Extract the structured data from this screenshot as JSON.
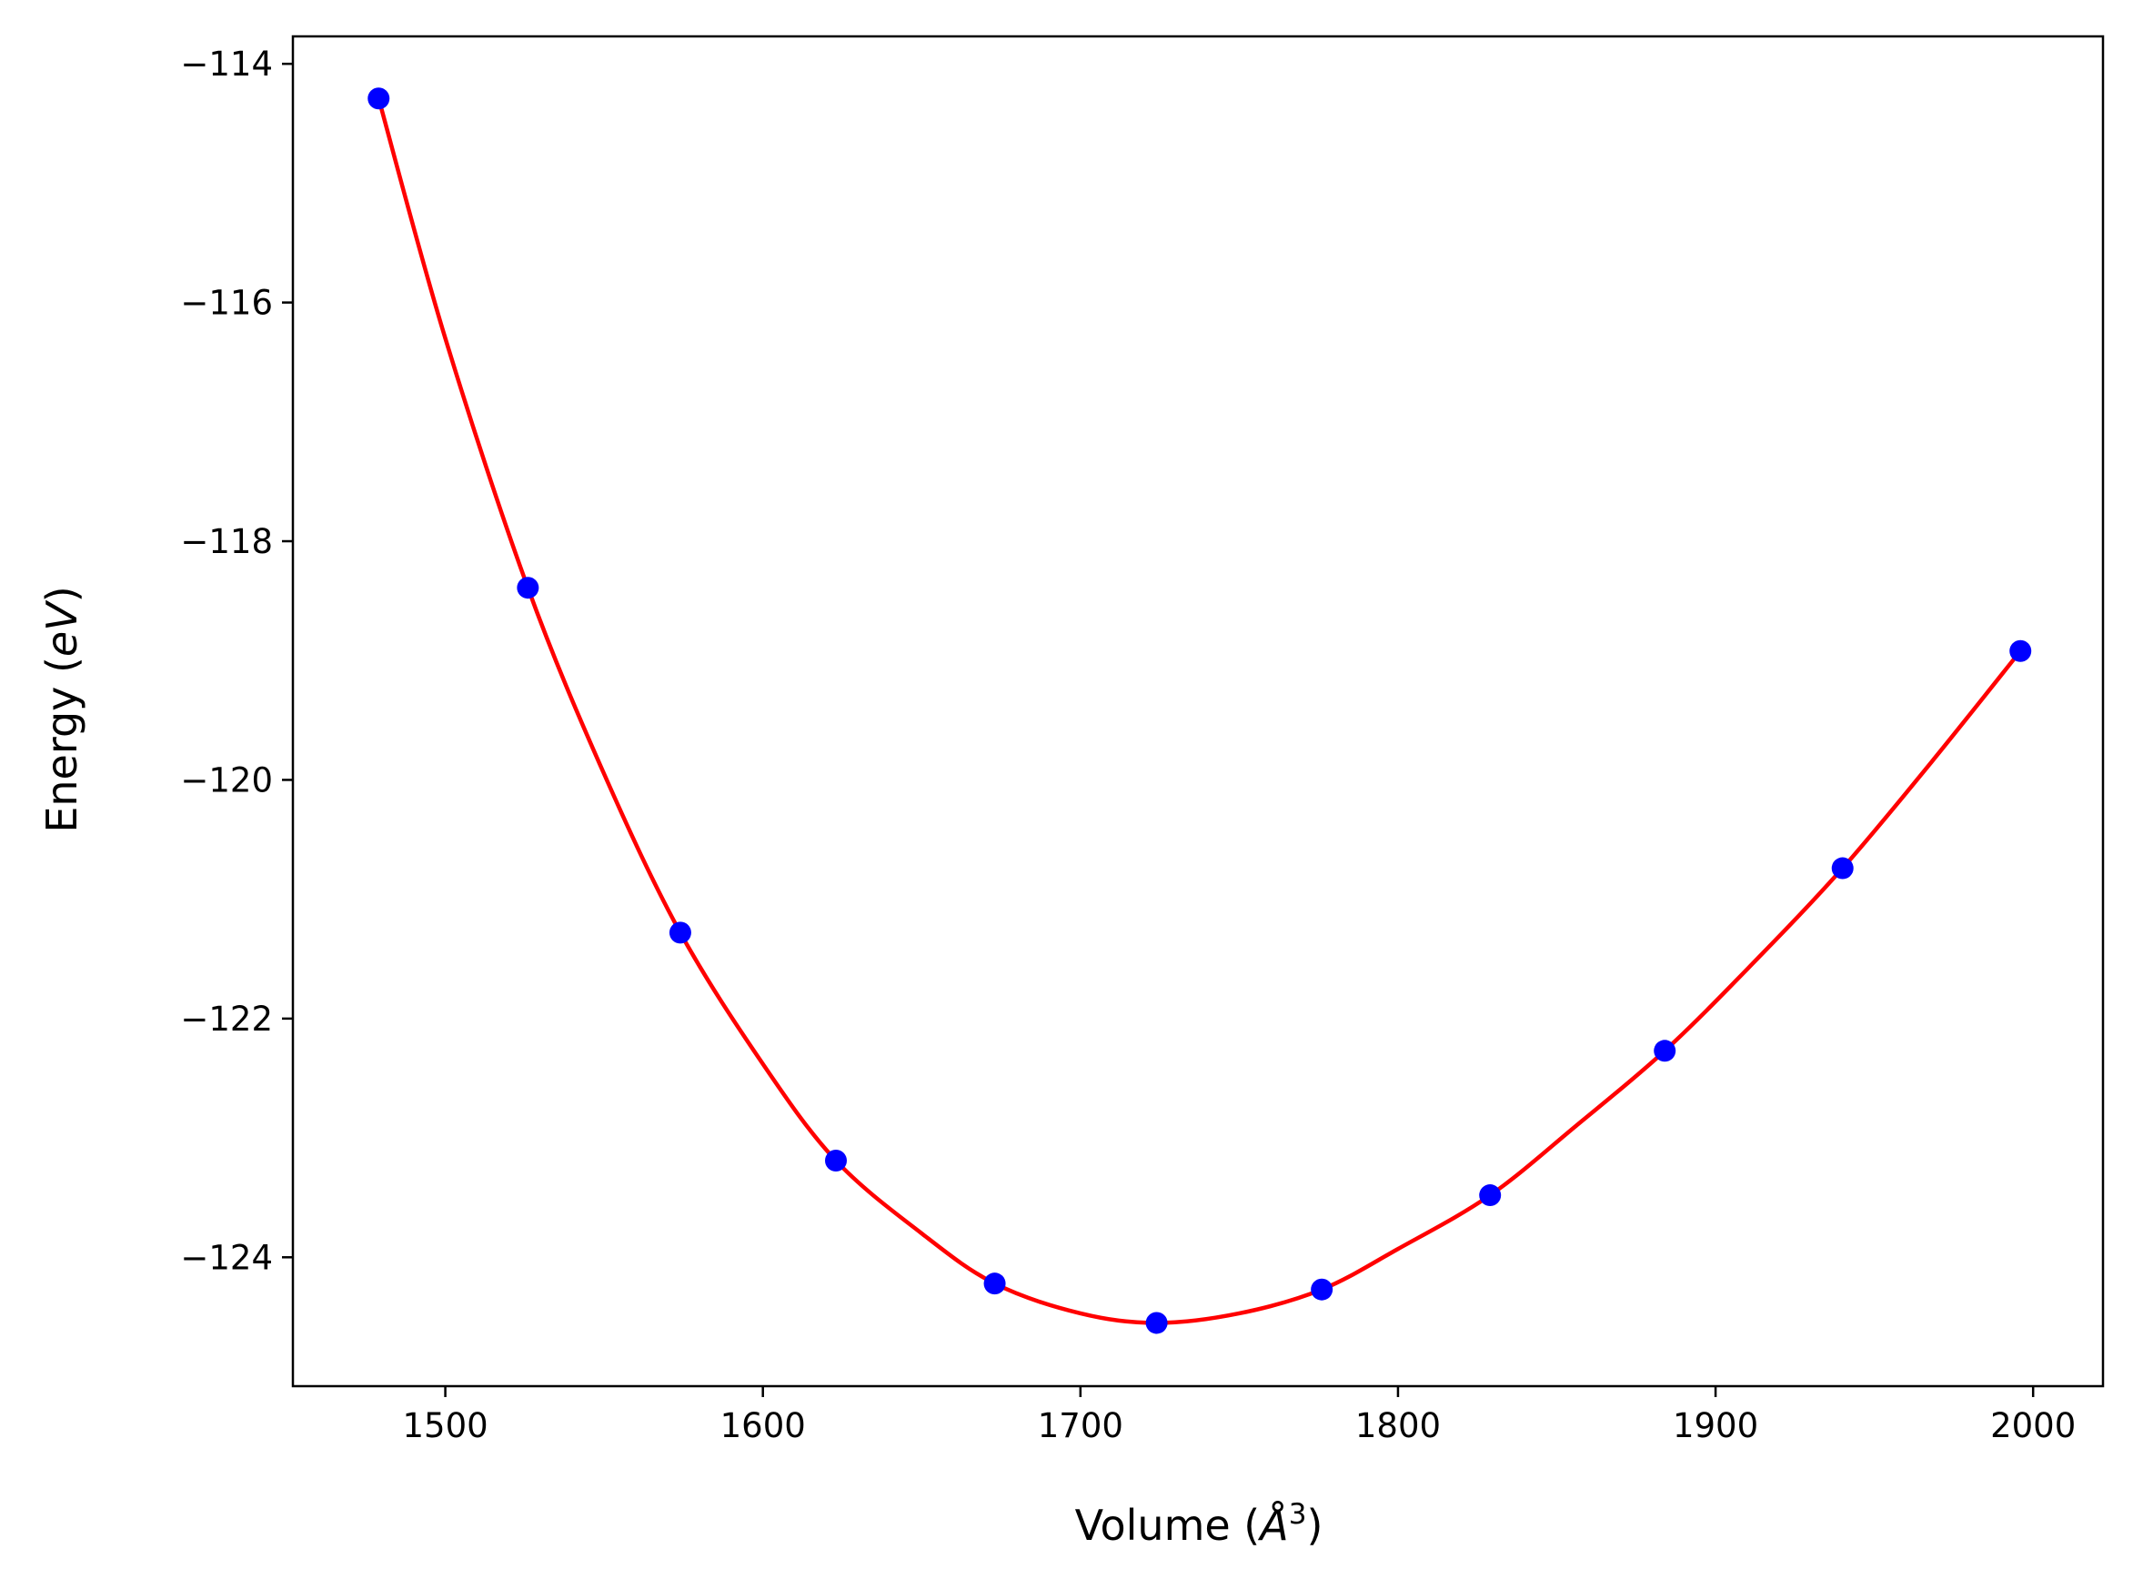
{
  "chart_data": {
    "type": "scatter",
    "title": "",
    "xlabel": "Volume (Å³)",
    "ylabel": "Energy (eV)",
    "xlabel_parts": {
      "prefix": "Volume (",
      "unit": "Å",
      "exponent": "3",
      "suffix": ")"
    },
    "ylabel_parts": {
      "prefix": "Energy (",
      "unit": "eV",
      "suffix": ")"
    },
    "xlim": [
      1452,
      2022
    ],
    "ylim": [
      -125.08,
      -113.77
    ],
    "x_ticks": [
      1500,
      1600,
      1700,
      1800,
      1900,
      2000
    ],
    "x_tick_labels": [
      "1500",
      "1600",
      "1700",
      "1800",
      "1900",
      "2000"
    ],
    "y_ticks": [
      -114,
      -116,
      -118,
      -120,
      -122,
      -124
    ],
    "y_tick_labels": [
      "−114",
      "−116",
      "−118",
      "−120",
      "−122",
      "−124"
    ],
    "grid": false,
    "series": [
      {
        "kind": "points",
        "color": "#0000ff",
        "x": [
          1479,
          1526,
          1574,
          1623,
          1673,
          1724,
          1776,
          1829,
          1884,
          1940,
          1996
        ],
        "y": [
          -114.29,
          -118.39,
          -121.28,
          -123.19,
          -124.22,
          -124.55,
          -124.27,
          -123.48,
          -122.27,
          -120.74,
          -118.92
        ]
      },
      {
        "kind": "fit-curve",
        "color": "#ff0000",
        "x": [
          1479,
          1500,
          1526,
          1550,
          1574,
          1600,
          1623,
          1650,
          1673,
          1700,
          1724,
          1750,
          1776,
          1800,
          1829,
          1856,
          1884,
          1912,
          1940,
          1968,
          1996
        ],
        "y": [
          -114.29,
          -116.3,
          -118.39,
          -119.95,
          -121.28,
          -122.38,
          -123.19,
          -123.8,
          -124.22,
          -124.47,
          -124.55,
          -124.47,
          -124.27,
          -123.93,
          -123.48,
          -122.9,
          -122.27,
          -121.53,
          -120.74,
          -119.85,
          -118.92
        ]
      }
    ]
  }
}
